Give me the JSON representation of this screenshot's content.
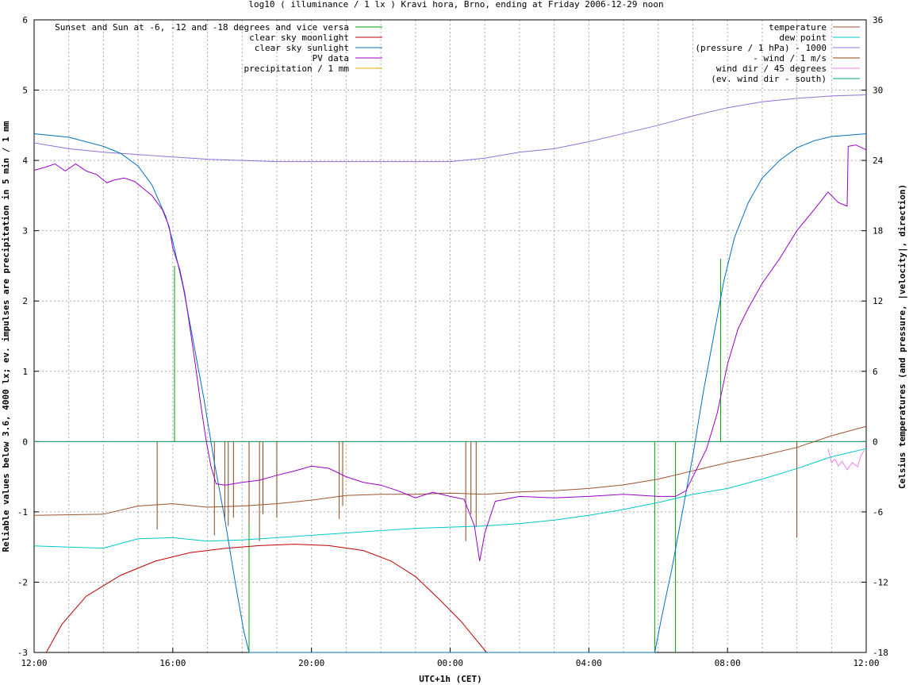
{
  "chart_data": {
    "type": "line",
    "title": "log10 ( illuminance / 1 lx ) Kravi hora, Brno, ending at Friday 2006-12-29 noon",
    "xlabel": "UTC+1h (CET)",
    "ylabel": "Reliable values below 3.6, 4000 lx; ev. impulses are precipitation in 5 min / 1 mm",
    "y2label": "Celsius temperatures (and pressure, |velocity|, direction)",
    "x_range_hours": [
      0,
      24
    ],
    "x_ticks": [
      {
        "h": 0,
        "label": "12:00"
      },
      {
        "h": 4,
        "label": "16:00"
      },
      {
        "h": 8,
        "label": "20:00"
      },
      {
        "h": 12,
        "label": "00:00"
      },
      {
        "h": 16,
        "label": "04:00"
      },
      {
        "h": 20,
        "label": "08:00"
      },
      {
        "h": 24,
        "label": "12:00"
      }
    ],
    "ylim": [
      -3,
      6
    ],
    "y_ticks": [
      "-3",
      "-2",
      "-1",
      "0",
      "1",
      "2",
      "3",
      "4",
      "5",
      "6"
    ],
    "y2lim": [
      -18,
      36
    ],
    "y2_ticks": [
      "-18",
      "-12",
      "-6",
      "0",
      "6",
      "12",
      "18",
      "24",
      "30",
      "36"
    ],
    "grid": true,
    "legend_left": [
      {
        "name": "Sunset and Sun at -6, -12 and -18 degrees and vice versa",
        "color": "#00a000"
      },
      {
        "name": "clear sky moonlight",
        "color": "#c00000"
      },
      {
        "name": "clear sky sunlight",
        "color": "#0070c0"
      },
      {
        "name": "PV data",
        "color": "#9900cc"
      },
      {
        "name": "precipitation / 1 mm",
        "color": "#ffa500"
      }
    ],
    "legend_right": [
      {
        "name": "temperature",
        "color": "#a0522d"
      },
      {
        "name": "dew point",
        "color": "#00c8c8"
      },
      {
        "name": "(pressure / 1 hPa) - 1000",
        "color": "#9370db"
      },
      {
        "name": "- wind / 1 m/s",
        "color": "#8b4513"
      },
      {
        "name": "wind dir / 45 degrees",
        "color": "#ee82ee"
      },
      {
        "name": "(ev. wind dir - south)",
        "color": "#00a080"
      }
    ],
    "sun_event_impulses": [
      {
        "h": 4.05,
        "top": 2.5
      },
      {
        "h": 6.2,
        "top": -3
      },
      {
        "h": 17.9,
        "top": -3
      },
      {
        "h": 18.5,
        "top": -3
      },
      {
        "h": 19.8,
        "top": 2.6
      }
    ],
    "clear_sky_sunlight": [
      [
        0,
        4.38
      ],
      [
        1,
        4.33
      ],
      [
        2,
        4.2
      ],
      [
        2.5,
        4.1
      ],
      [
        3,
        3.92
      ],
      [
        3.4,
        3.65
      ],
      [
        3.8,
        3.2
      ],
      [
        4.0,
        2.85
      ],
      [
        4.3,
        2.2
      ],
      [
        4.6,
        1.4
      ],
      [
        4.9,
        0.6
      ],
      [
        5.2,
        -0.3
      ],
      [
        5.5,
        -1.1
      ],
      [
        5.8,
        -2.0
      ],
      [
        6.05,
        -2.7
      ],
      [
        6.2,
        -3
      ],
      [
        17.9,
        -3
      ],
      [
        18.1,
        -2.5
      ],
      [
        18.4,
        -1.8
      ],
      [
        18.7,
        -1.0
      ],
      [
        19.0,
        -0.2
      ],
      [
        19.3,
        0.7
      ],
      [
        19.6,
        1.5
      ],
      [
        19.9,
        2.3
      ],
      [
        20.2,
        2.9
      ],
      [
        20.6,
        3.4
      ],
      [
        21,
        3.75
      ],
      [
        21.5,
        4.0
      ],
      [
        22,
        4.18
      ],
      [
        22.5,
        4.28
      ],
      [
        23,
        4.34
      ],
      [
        24,
        4.38
      ]
    ],
    "clear_sky_moonlight": [
      [
        0.35,
        -3
      ],
      [
        0.8,
        -2.6
      ],
      [
        1.5,
        -2.2
      ],
      [
        2.5,
        -1.9
      ],
      [
        3.5,
        -1.7
      ],
      [
        4.5,
        -1.58
      ],
      [
        5.5,
        -1.52
      ],
      [
        6.5,
        -1.48
      ],
      [
        7.5,
        -1.46
      ],
      [
        8.5,
        -1.48
      ],
      [
        9.5,
        -1.55
      ],
      [
        10.3,
        -1.7
      ],
      [
        11,
        -1.92
      ],
      [
        11.7,
        -2.25
      ],
      [
        12.3,
        -2.55
      ],
      [
        12.8,
        -2.85
      ],
      [
        13.05,
        -3
      ]
    ],
    "pv_data": [
      [
        0,
        3.86
      ],
      [
        0.3,
        3.9
      ],
      [
        0.6,
        3.95
      ],
      [
        0.9,
        3.85
      ],
      [
        1.2,
        3.95
      ],
      [
        1.5,
        3.85
      ],
      [
        1.8,
        3.8
      ],
      [
        2.1,
        3.68
      ],
      [
        2.3,
        3.72
      ],
      [
        2.6,
        3.75
      ],
      [
        2.9,
        3.7
      ],
      [
        3.1,
        3.62
      ],
      [
        3.4,
        3.5
      ],
      [
        3.7,
        3.3
      ],
      [
        3.9,
        3.05
      ],
      [
        4.0,
        2.75
      ],
      [
        4.2,
        2.45
      ],
      [
        4.35,
        2.1
      ],
      [
        4.5,
        1.6
      ],
      [
        4.65,
        1.1
      ],
      [
        4.8,
        0.55
      ],
      [
        4.95,
        0.05
      ],
      [
        5.1,
        -0.35
      ],
      [
        5.25,
        -0.6
      ],
      [
        5.5,
        -0.62
      ],
      [
        6,
        -0.58
      ],
      [
        6.5,
        -0.55
      ],
      [
        7,
        -0.48
      ],
      [
        7.5,
        -0.42
      ],
      [
        8,
        -0.35
      ],
      [
        8.5,
        -0.38
      ],
      [
        9,
        -0.5
      ],
      [
        9.5,
        -0.58
      ],
      [
        10,
        -0.62
      ],
      [
        10.5,
        -0.7
      ],
      [
        11,
        -0.8
      ],
      [
        11.5,
        -0.72
      ],
      [
        12,
        -0.78
      ],
      [
        12.4,
        -0.82
      ],
      [
        12.7,
        -1.2
      ],
      [
        12.85,
        -1.7
      ],
      [
        13.0,
        -1.3
      ],
      [
        13.3,
        -0.85
      ],
      [
        14,
        -0.78
      ],
      [
        15,
        -0.8
      ],
      [
        16,
        -0.78
      ],
      [
        17,
        -0.75
      ],
      [
        18,
        -0.78
      ],
      [
        18.5,
        -0.78
      ],
      [
        18.8,
        -0.7
      ],
      [
        19.1,
        -0.4
      ],
      [
        19.4,
        -0.1
      ],
      [
        19.7,
        0.4
      ],
      [
        20,
        1.1
      ],
      [
        20.3,
        1.6
      ],
      [
        20.6,
        1.9
      ],
      [
        21,
        2.25
      ],
      [
        21.5,
        2.6
      ],
      [
        22,
        3.0
      ],
      [
        22.5,
        3.3
      ],
      [
        22.9,
        3.55
      ],
      [
        23.2,
        3.4
      ],
      [
        23.45,
        3.35
      ],
      [
        23.48,
        4.2
      ],
      [
        23.7,
        4.22
      ],
      [
        24,
        4.15
      ]
    ],
    "temperature_degC": [
      [
        0,
        -6.3
      ],
      [
        2,
        -6.2
      ],
      [
        3,
        -5.5
      ],
      [
        4,
        -5.3
      ],
      [
        5,
        -5.6
      ],
      [
        6,
        -5.5
      ],
      [
        7,
        -5.3
      ],
      [
        8,
        -5.0
      ],
      [
        9,
        -4.6
      ],
      [
        10,
        -4.5
      ],
      [
        11,
        -4.5
      ],
      [
        12,
        -4.4
      ],
      [
        13,
        -4.5
      ],
      [
        14,
        -4.3
      ],
      [
        15,
        -4.2
      ],
      [
        16,
        -4.0
      ],
      [
        17,
        -3.7
      ],
      [
        18,
        -3.2
      ],
      [
        19,
        -2.5
      ],
      [
        20,
        -1.8
      ],
      [
        21,
        -1.2
      ],
      [
        22,
        -0.5
      ],
      [
        23,
        0.5
      ],
      [
        24,
        1.3
      ]
    ],
    "dew_point_degC": [
      [
        0,
        -8.9
      ],
      [
        1,
        -9.0
      ],
      [
        2,
        -9.1
      ],
      [
        3,
        -8.3
      ],
      [
        4,
        -8.2
      ],
      [
        5,
        -8.5
      ],
      [
        6,
        -8.4
      ],
      [
        7,
        -8.2
      ],
      [
        8,
        -8.0
      ],
      [
        9,
        -7.8
      ],
      [
        10,
        -7.6
      ],
      [
        11,
        -7.4
      ],
      [
        12,
        -7.3
      ],
      [
        13,
        -7.2
      ],
      [
        14,
        -7.0
      ],
      [
        15,
        -6.7
      ],
      [
        16,
        -6.3
      ],
      [
        17,
        -5.8
      ],
      [
        18,
        -5.2
      ],
      [
        19,
        -4.5
      ],
      [
        20,
        -4.0
      ],
      [
        21,
        -3.2
      ],
      [
        22,
        -2.3
      ],
      [
        23,
        -1.3
      ],
      [
        24,
        -0.6
      ]
    ],
    "pressure_minus_1000_hPa": [
      [
        0,
        25.5
      ],
      [
        1,
        25.0
      ],
      [
        2,
        24.7
      ],
      [
        3,
        24.5
      ],
      [
        4,
        24.3
      ],
      [
        5,
        24.1
      ],
      [
        6,
        24.0
      ],
      [
        7,
        23.9
      ],
      [
        8,
        23.9
      ],
      [
        9,
        23.9
      ],
      [
        10,
        23.9
      ],
      [
        11,
        23.9
      ],
      [
        12,
        23.9
      ],
      [
        13,
        24.2
      ],
      [
        14,
        24.7
      ],
      [
        15,
        25.0
      ],
      [
        16,
        25.6
      ],
      [
        17,
        26.3
      ],
      [
        18,
        27.0
      ],
      [
        19,
        27.8
      ],
      [
        20,
        28.5
      ],
      [
        21,
        29.0
      ],
      [
        22,
        29.3
      ],
      [
        23,
        29.5
      ],
      [
        24,
        29.6
      ]
    ],
    "wind_impulses_neg_ms": [
      {
        "h": 3.55,
        "v": -7.5
      },
      {
        "h": 5.2,
        "v": -8.0
      },
      {
        "h": 5.5,
        "v": -6.7
      },
      {
        "h": 5.6,
        "v": -7.2
      },
      {
        "h": 5.75,
        "v": -6.5
      },
      {
        "h": 6.2,
        "v": -7.0
      },
      {
        "h": 6.5,
        "v": -8.5
      },
      {
        "h": 6.6,
        "v": -6.2
      },
      {
        "h": 7.0,
        "v": -6.5
      },
      {
        "h": 8.8,
        "v": -6.6
      },
      {
        "h": 8.9,
        "v": -5.5
      },
      {
        "h": 12.45,
        "v": -8.5
      },
      {
        "h": 12.6,
        "v": -6.2
      },
      {
        "h": 12.75,
        "v": -7.3
      },
      {
        "h": 22.0,
        "v": -8.2
      }
    ],
    "wind_dir_45deg": [
      [
        22.9,
        -0.1
      ],
      [
        23.0,
        -0.3
      ],
      [
        23.1,
        -0.25
      ],
      [
        23.2,
        -0.35
      ],
      [
        23.3,
        -0.28
      ],
      [
        23.45,
        -0.4
      ],
      [
        23.6,
        -0.3
      ],
      [
        23.75,
        -0.36
      ],
      [
        23.85,
        -0.2
      ],
      [
        23.95,
        -0.12
      ]
    ],
    "south_line_value": 0,
    "precipitation_line_value": 0
  }
}
